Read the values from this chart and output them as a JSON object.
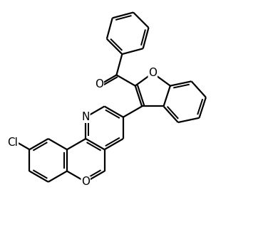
{
  "background": "#ffffff",
  "lw": 1.6,
  "figsize": [
    3.76,
    3.36
  ],
  "dpi": 100,
  "xlim": [
    0,
    10
  ],
  "ylim": [
    0,
    9
  ]
}
